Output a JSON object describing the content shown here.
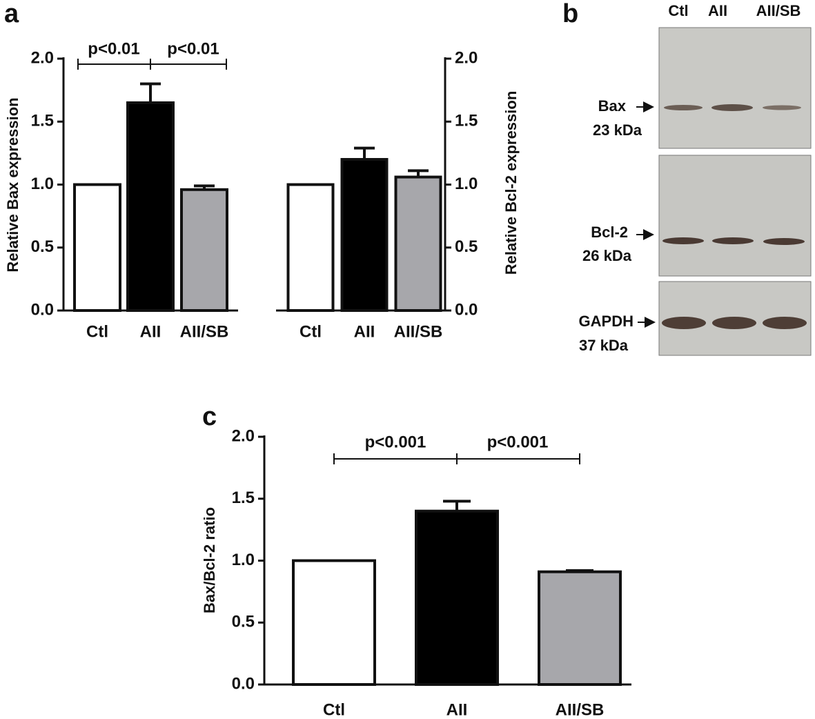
{
  "chart_data": [
    {
      "type": "bar",
      "panel": "a",
      "y_label": "Relative Bax expression",
      "categories": [
        "Ctl",
        "AII",
        "AII/SB"
      ],
      "values": [
        1.0,
        1.65,
        0.96
      ],
      "errors": [
        0,
        0.15,
        0.03
      ],
      "colors": [
        "#ffffff",
        "#000000",
        "#a7a7ab"
      ],
      "ylim": [
        0,
        2.0
      ],
      "yticks": [
        {
          "value": 0,
          "label": "0.0"
        },
        0.5,
        {
          "value": 1,
          "label": "1.0"
        },
        1.5,
        {
          "value": 2,
          "label": "2.0"
        }
      ],
      "annotations": [
        "p<0.01",
        "p<0.01"
      ]
    },
    {
      "type": "bar",
      "y_label": "Relative Bcl-2 expression",
      "categories": [
        "Ctl",
        "AII",
        "AII/SB"
      ],
      "values": [
        1.0,
        1.2,
        1.06
      ],
      "errors": [
        0,
        0.09,
        0.05
      ],
      "colors": [
        "#ffffff",
        "#000000",
        "#a7a7ab"
      ],
      "ylim": [
        0,
        2.0
      ],
      "yticks": [
        {
          "value": 0,
          "label": "0.0"
        },
        0.5,
        {
          "value": 1,
          "label": "1.0"
        },
        1.5,
        {
          "value": 2,
          "label": "2.0"
        }
      ]
    },
    {
      "type": "bar",
      "panel": "c",
      "y_label": "Bax/Bcl-2 ratio",
      "categories": [
        "Ctl",
        "AII",
        "AII/SB"
      ],
      "values": [
        1.0,
        1.4,
        0.91
      ],
      "errors": [
        0,
        0.08,
        0.01
      ],
      "colors": [
        "#ffffff",
        "#000000",
        "#a7a7ab"
      ],
      "ylim": [
        0,
        2.0
      ],
      "yticks": [
        {
          "value": 0,
          "label": "0.0"
        },
        0.5,
        {
          "value": 1,
          "label": "1.0"
        },
        1.5,
        {
          "value": 2,
          "label": "2.0"
        }
      ],
      "annotations": [
        "p<0.001",
        "p<0.001"
      ]
    }
  ],
  "blot": {
    "panel": "b",
    "lanes": [
      "Ctl",
      "AII",
      "AII/SB"
    ],
    "bands": [
      {
        "name": "Bax",
        "size": "23 kDa"
      },
      {
        "name": "Bcl-2",
        "size": "26 kDa"
      },
      {
        "name": "GAPDH",
        "size": "37 kDa"
      }
    ]
  }
}
